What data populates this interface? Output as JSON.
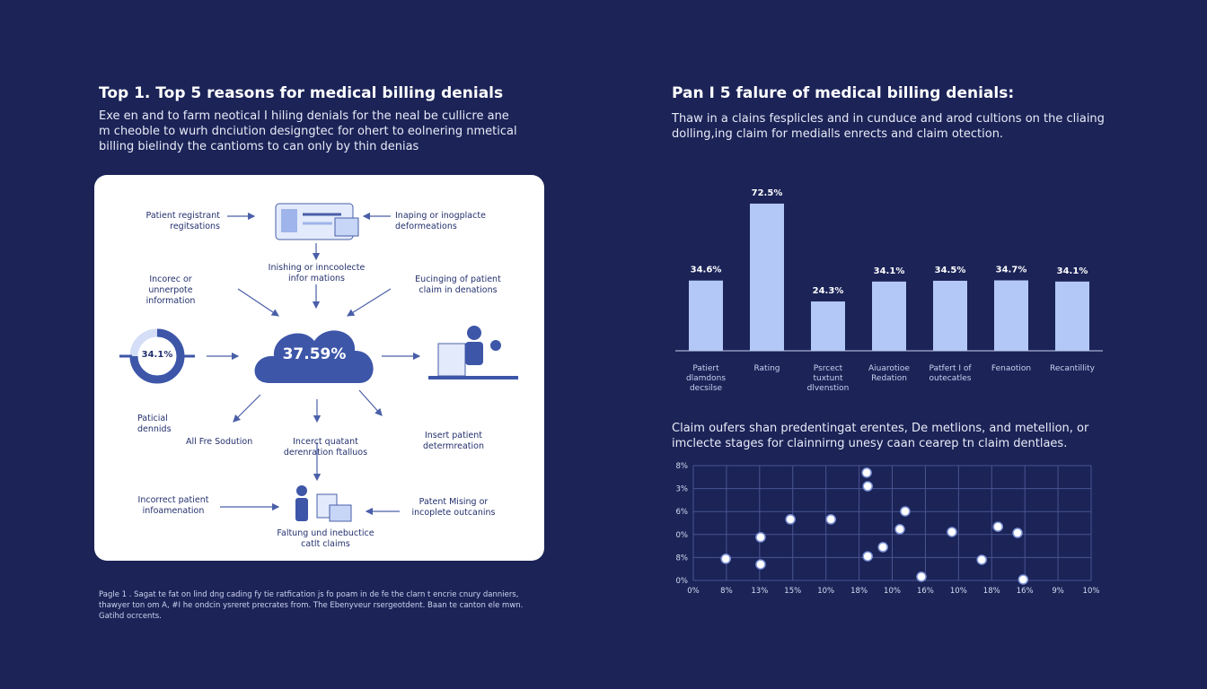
{
  "left_panel": {
    "title": "Top 1. Top 5 reasons for medical billing denials",
    "paragraph": [
      "Exe en and to farm neotical I hiling denials for the neal be cullicre ane",
      "m cheoble to wurh dnciution designgtec for ohert to eolnering nmetical",
      "billing bielindy the cantioms to can only by thin denias"
    ],
    "diagram": {
      "labels": [
        "Patient registrant regitsations",
        "Inaping or inogplacte deformeations",
        "Inishing or inncoolecte infor mations",
        "Incorec or unnerpote information",
        "Eucinging of patient claim in denations",
        "Paticial dennids",
        "All Fre Sodution",
        "Incerct quatant derenration ftalluos",
        "Insert patient determreation",
        "Incorrect patient infoamenation",
        "Patent Mising or incoplete outcanins",
        "Faltung und inebuctice catlt claims"
      ],
      "donut_label": "34.1%",
      "cloud_label": "37.59%"
    },
    "footer": "Pagle 1 . Sagat te fat on lind dng cading fy tie ratfication js fo poam in de fe the clarn t encrie cnury danniers, thawyer ton om A, #I he ondcin ysreret precrates from. The Ebenyveur rsergeotdent. Baan te canton ele mwn. Gatihd ocrcents."
  },
  "chart_data": [
    {
      "type": "bar",
      "title": "Pan I 5 falure of medical billing denials:",
      "subtitle": [
        "Thaw in a clains fesplicles and in cunduce and arod cultions on the cliaing",
        "dolling,ing claim for medialls enrects and claim otection."
      ],
      "categories": [
        "Patiert dlamdons decsilse",
        "Rating",
        "Psrcect tuxtunt dlvenstion",
        "Aiuarotioe Redation",
        "Patfert I of outecatles",
        "Fenaotion",
        "Recantillity"
      ],
      "values": [
        34.6,
        72.5,
        24.3,
        34.1,
        34.5,
        34.7,
        34.1
      ],
      "value_labels": [
        "34.6%",
        "72.5%",
        "24.3%",
        "34.1%",
        "34.5%",
        "34.7%",
        "34.1%"
      ],
      "color": "#b3c8f6",
      "ylim": [
        0,
        80
      ]
    },
    {
      "type": "scatter",
      "subtitle": [
        "Claim oufers shan predentingat erentes, De metlions, and metellion, or",
        "imclecte stages for clainnirng unesy caan cearep tn claim dentlaes."
      ],
      "x": [
        0.98,
        2.03,
        2.03,
        2.93,
        4.15,
        5.23,
        5.26,
        5.26,
        5.72,
        6.23,
        6.39,
        6.88,
        7.8,
        8.7,
        9.19,
        9.78,
        9.95
      ],
      "values": [
        0.94,
        1.88,
        0.7,
        2.66,
        2.66,
        4.69,
        4.1,
        1.05,
        1.45,
        2.23,
        3.01,
        0.16,
        2.11,
        0.9,
        2.34,
        2.07,
        0.04
      ],
      "color": "#ffffff",
      "xlim": [
        0,
        12
      ],
      "xticks": [
        {
          "value": 0,
          "label": "0%"
        },
        {
          "value": 1,
          "label": "8%"
        },
        {
          "value": 2,
          "label": "13%"
        },
        {
          "value": 3,
          "label": "15%"
        },
        {
          "value": 4,
          "label": "10%"
        },
        {
          "value": 5,
          "label": "18%"
        },
        {
          "value": 6,
          "label": "10%"
        },
        {
          "value": 7,
          "label": "16%"
        },
        {
          "value": 8,
          "label": "10%"
        },
        {
          "value": 9,
          "label": "18%"
        },
        {
          "value": 10,
          "label": "16%"
        },
        {
          "value": 11,
          "label": "9%"
        },
        {
          "value": 12,
          "label": "10%"
        }
      ],
      "ylim": [
        0,
        5
      ],
      "yticks": [
        {
          "value": 0,
          "label": "0%"
        },
        {
          "value": 1,
          "label": "8%"
        },
        {
          "value": 2,
          "label": "0%"
        },
        {
          "value": 3,
          "label": "6%"
        },
        {
          "value": 4,
          "label": "3%"
        },
        {
          "value": 5,
          "label": "8%"
        }
      ],
      "grid": true
    }
  ]
}
